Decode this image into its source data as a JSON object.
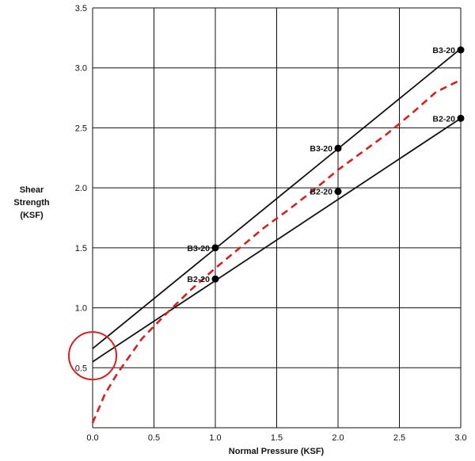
{
  "chart_data": {
    "type": "scatter",
    "xlabel": "Normal Pressure (KSF)",
    "ylabel": [
      "Shear",
      "Strength",
      "(KSF)"
    ],
    "xlim": [
      0.0,
      3.0
    ],
    "ylim": [
      0.0,
      3.5
    ],
    "x_ticks": [
      "0.0",
      "0.5",
      "1.0",
      "1.5",
      "2.0",
      "2.5",
      "3.0"
    ],
    "y_ticks": [
      "0.5",
      "1.0",
      "1.5",
      "2.0",
      "2.5",
      "3.0",
      "3.5"
    ],
    "grid": true,
    "points": [
      {
        "label": "B3-20",
        "x": 1.0,
        "y": 1.5
      },
      {
        "label": "B3-20",
        "x": 2.0,
        "y": 2.33
      },
      {
        "label": "B3-20",
        "x": 3.0,
        "y": 3.15
      },
      {
        "label": "B2-20",
        "x": 1.0,
        "y": 1.24
      },
      {
        "label": "B2-20",
        "x": 2.0,
        "y": 1.97
      },
      {
        "label": "B2-20",
        "x": 3.0,
        "y": 2.58
      }
    ],
    "lines": [
      {
        "x": [
          0.0,
          3.0
        ],
        "y": [
          0.66,
          3.16
        ],
        "color": "#111111",
        "style": "solid"
      },
      {
        "x": [
          0.0,
          3.0
        ],
        "y": [
          0.55,
          2.58
        ],
        "color": "#111111",
        "style": "solid"
      }
    ],
    "curve": {
      "x": [
        0.0,
        0.1,
        0.2,
        0.4,
        0.6,
        0.8,
        1.0,
        1.2,
        1.4,
        1.6,
        1.8,
        2.0,
        2.2,
        2.4,
        2.6,
        2.8,
        3.0
      ],
      "y": [
        0.04,
        0.28,
        0.45,
        0.74,
        0.95,
        1.15,
        1.33,
        1.5,
        1.67,
        1.82,
        1.98,
        2.15,
        2.3,
        2.45,
        2.62,
        2.8,
        2.9
      ],
      "color": "#d62020",
      "style": "dashed"
    },
    "highlight_circle": {
      "x": 0.0,
      "y": 0.6,
      "color": "#d62020"
    }
  }
}
